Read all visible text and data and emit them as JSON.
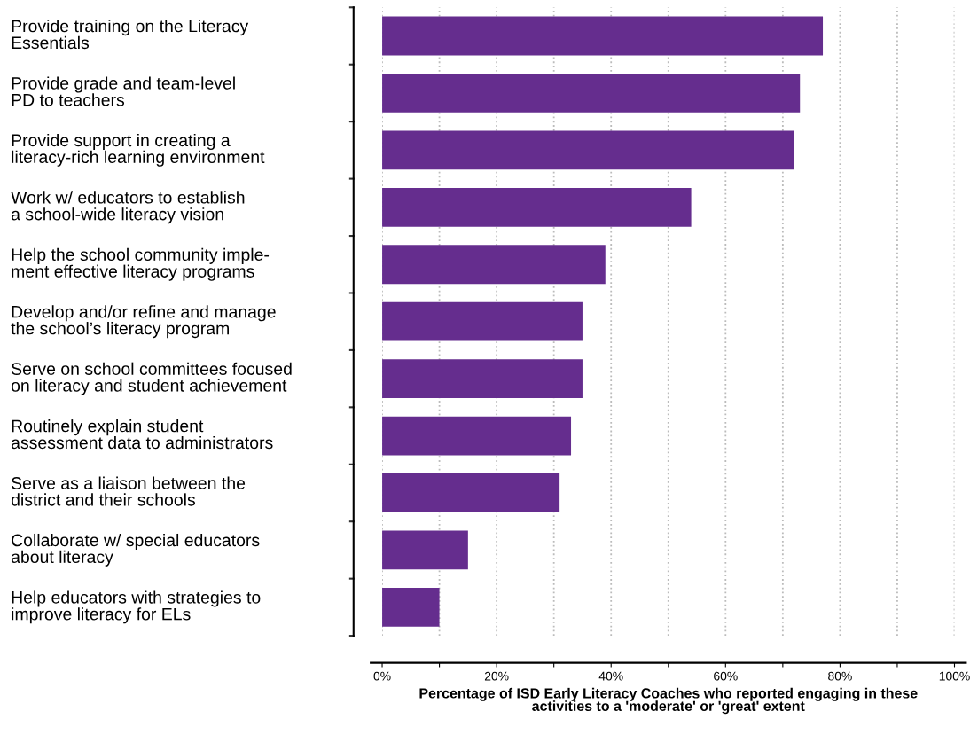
{
  "chart_data": {
    "type": "bar",
    "orientation": "horizontal",
    "xlabel": "Percentage of ISD Early Literacy Coaches who reported engaging in these\nactivities to a 'moderate' or 'great' extent",
    "categories": [
      "Provide training on the Literacy\nEssentials",
      "Provide grade and team-level\nPD to teachers",
      "Provide support in creating a\nliteracy-rich learning environment",
      "Work w/ educators to establish\na school-wide literacy vision",
      "Help the school community imple-\nment effective literacy programs",
      "Develop and/or refine and manage\nthe school’s literacy program",
      "Serve on school committees focused\non literacy and student achievement",
      "Routinely explain student\nassessment data to administrators",
      "Serve as a liaison between the\ndistrict and their schools",
      "Collaborate w/ special educators\nabout literacy",
      "Help educators with strategies to\nimprove literacy for ELs"
    ],
    "values": [
      77,
      73,
      72,
      54,
      39,
      35,
      35,
      33,
      31,
      15,
      10
    ],
    "color": "#652d8e",
    "xlim": [
      0,
      100
    ],
    "xticks": [
      {
        "value": 0,
        "label": "0%"
      },
      {
        "value": 10,
        "label": null
      },
      {
        "value": 20,
        "label": "20%"
      },
      {
        "value": 30,
        "label": null
      },
      {
        "value": 40,
        "label": "40%"
      },
      {
        "value": 50,
        "label": null
      },
      {
        "value": 60,
        "label": "60%"
      },
      {
        "value": 70,
        "label": null
      },
      {
        "value": 80,
        "label": "80%"
      },
      {
        "value": 90,
        "label": null
      },
      {
        "value": 100,
        "label": "100%"
      }
    ],
    "grid": "x"
  }
}
